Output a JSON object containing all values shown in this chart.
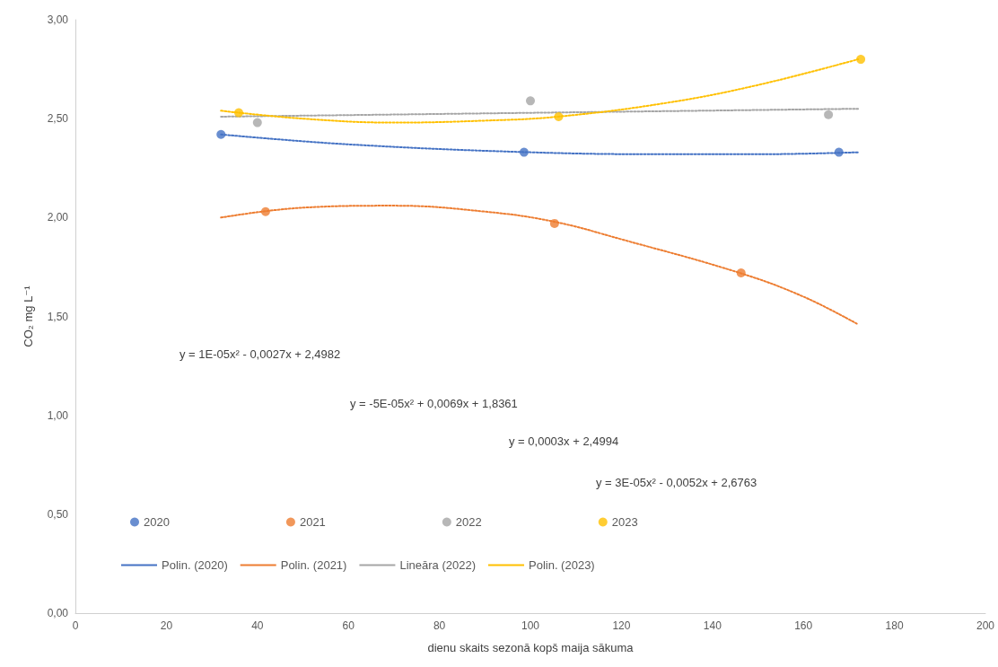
{
  "chart_data": {
    "type": "scatter",
    "xlabel": "dienu skaits sezonā kopš maija sākuma",
    "ylabel": "CO₂ mg L⁻¹",
    "xlim": [
      0,
      200
    ],
    "xticks": [
      0,
      20,
      40,
      60,
      80,
      100,
      120,
      140,
      160,
      180,
      200
    ],
    "ylim": [
      0,
      3
    ],
    "yticks": [
      {
        "value": 0,
        "label": "0,00"
      },
      {
        "value": 0.5,
        "label": "0,50"
      },
      {
        "value": 1,
        "label": "1,00"
      },
      {
        "value": 1.5,
        "label": "1,50"
      },
      {
        "value": 2,
        "label": "2,00"
      },
      {
        "value": 2.5,
        "label": "2,50"
      },
      {
        "value": 3,
        "label": "3,00"
      }
    ],
    "grid": false,
    "legend": "bottom",
    "marker": "circle",
    "line_style": "dotted",
    "series": [
      {
        "name": "2020",
        "color": "#4472c4",
        "x": [
          32,
          98.6,
          167.8
        ],
        "values": [
          2.42,
          2.33,
          2.33
        ]
      },
      {
        "name": "2021",
        "color": "#ed7d31",
        "x": [
          41.8,
          105.3,
          146.3
        ],
        "values": [
          2.03,
          1.97,
          1.72
        ]
      },
      {
        "name": "2022",
        "color": "#a5a5a5",
        "x": [
          40,
          100,
          165.5
        ],
        "values": [
          2.48,
          2.59,
          2.52
        ]
      },
      {
        "name": "2023",
        "color": "#ffc000",
        "x": [
          35.9,
          106.2,
          172.6
        ],
        "values": [
          2.53,
          2.51,
          2.8
        ]
      },
      {
        "name": "Polin. (2020)",
        "type": "line",
        "marker": "none",
        "color": "#4472c4",
        "x": [
          32,
          60,
          100,
          130,
          150,
          172
        ],
        "values": [
          2.42,
          2.37,
          2.33,
          2.32,
          2.32,
          2.33
        ]
      },
      {
        "name": "Polin. (2021)",
        "type": "line",
        "marker": "none",
        "color": "#ed7d31",
        "x": [
          32,
          50,
          70,
          90,
          105,
          120,
          146,
          160,
          172
        ],
        "values": [
          2.0,
          2.05,
          2.06,
          2.03,
          1.98,
          1.89,
          1.72,
          1.6,
          1.46
        ]
      },
      {
        "name": "Lineāra (2022)",
        "type": "line",
        "marker": "none",
        "color": "#a5a5a5",
        "x": [
          32,
          172
        ],
        "values": [
          2.51,
          2.55
        ]
      },
      {
        "name": "Polin. (2023)",
        "type": "line",
        "marker": "none",
        "color": "#ffc000",
        "x": [
          32,
          50,
          70,
          90,
          106,
          130,
          150,
          172
        ],
        "values": [
          2.54,
          2.5,
          2.48,
          2.49,
          2.51,
          2.58,
          2.67,
          2.8
        ]
      }
    ],
    "annotations": [
      "y = 1E-05x² - 0,0027x + 2,4982",
      "y = -5E-05x² + 0,0069x + 1,8361",
      "y = 0,0003x + 2,4994",
      "y = 3E-05x² - 0,0052x + 2,6763"
    ]
  }
}
